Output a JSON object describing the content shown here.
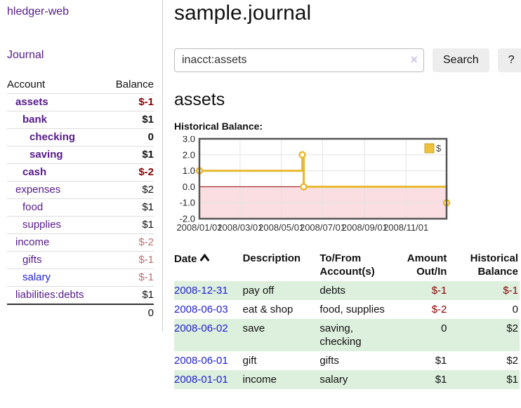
{
  "app": {
    "brand": "hledger-web",
    "nav_journal": "Journal"
  },
  "sidebar": {
    "header": {
      "account": "Account",
      "balance": "Balance"
    },
    "accounts": [
      {
        "name": "assets",
        "depth": 1,
        "balance": "$-1"
      },
      {
        "name": "bank",
        "depth": 2,
        "balance": "$1"
      },
      {
        "name": "checking",
        "depth": 3,
        "balance": "0"
      },
      {
        "name": "saving",
        "depth": 3,
        "balance": "$1"
      },
      {
        "name": "cash",
        "depth": 2,
        "balance": "$-2"
      },
      {
        "name": "expenses",
        "depth": 1,
        "balance": "$2"
      },
      {
        "name": "food",
        "depth": 2,
        "balance": "$1"
      },
      {
        "name": "supplies",
        "depth": 2,
        "balance": "$1"
      },
      {
        "name": "income",
        "depth": 1,
        "balance": "$-2"
      },
      {
        "name": "gifts",
        "depth": 2,
        "balance": "$-1"
      },
      {
        "name": "salary",
        "depth": 2,
        "balance": "$-1"
      },
      {
        "name": "liabilities:debts",
        "depth": 1,
        "balance": "$1"
      }
    ],
    "total": "0"
  },
  "main": {
    "title": "sample.journal",
    "search": {
      "value": "inacct:assets",
      "clear_icon": "×",
      "button_label": "Search",
      "help_label": "?"
    },
    "account_heading": "assets",
    "chart_label": "Historical Balance:"
  },
  "chart_data": {
    "type": "line",
    "title": "Historical Balance:",
    "series": [
      {
        "name": "$",
        "color": "#e9b930",
        "step": true,
        "points": [
          {
            "date": "2008-01-01",
            "value": 1
          },
          {
            "date": "2008-06-01",
            "value": 2
          },
          {
            "date": "2008-06-03",
            "value": 0
          },
          {
            "date": "2008-12-31",
            "value": -1
          }
        ]
      }
    ],
    "x_ticks": [
      "2008/01/01",
      "2008/03/01",
      "2008/05/01",
      "2008/07/01",
      "2008/09/01",
      "2008/11/01"
    ],
    "x_range": [
      "2008-01-01",
      "2008-12-31"
    ],
    "y_ticks": [
      "3.0",
      "2.0",
      "1.0",
      "0.0",
      "-1.0",
      "-2.0"
    ],
    "ylim": [
      -2,
      3
    ],
    "grid": true,
    "legend_position": "top-right",
    "legend": {
      "label": "$",
      "swatch_color": "#ecc23c",
      "swatch_border": "#c9a227"
    },
    "zero_line_color": "#8b0000",
    "negative_region_color": "#fadee1"
  },
  "register": {
    "headers": [
      {
        "label": "Date"
      },
      {
        "label": "Description"
      },
      {
        "label": "To/From Account(s)"
      },
      {
        "label": "Amount Out/In"
      },
      {
        "label": "Historical Balance"
      }
    ],
    "rows": [
      {
        "date": "2008-12-31",
        "description": "pay off",
        "accounts": "debts",
        "amount": "$-1",
        "balance": "$-1"
      },
      {
        "date": "2008-06-03",
        "description": "eat & shop",
        "accounts": "food, supplies",
        "amount": "$-2",
        "balance": "0"
      },
      {
        "date": "2008-06-02",
        "description": "save",
        "accounts": "saving, checking",
        "amount": "0",
        "balance": "$2"
      },
      {
        "date": "2008-06-01",
        "description": "gift",
        "accounts": "gifts",
        "amount": "$1",
        "balance": "$2"
      },
      {
        "date": "2008-01-01",
        "description": "income",
        "accounts": "salary",
        "amount": "$1",
        "balance": "$1"
      }
    ]
  }
}
